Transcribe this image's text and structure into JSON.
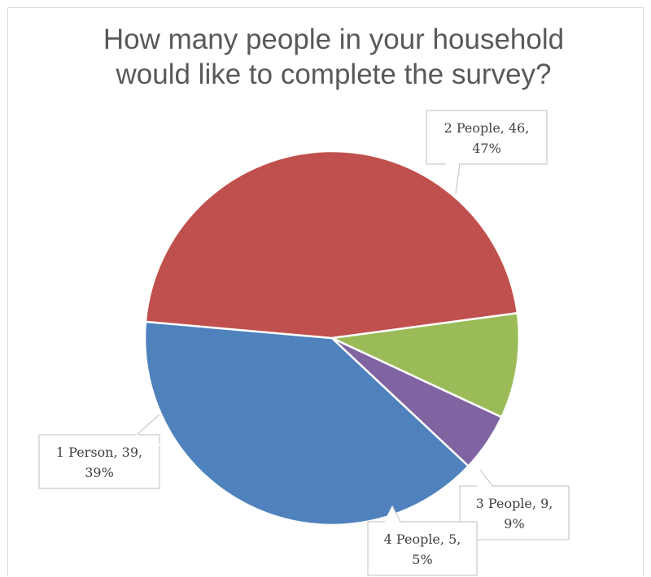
{
  "chart_data": {
    "type": "pie",
    "title_lines": [
      "How many people in your household",
      "would like to complete the survey?"
    ],
    "slices": [
      {
        "category": "1 Person",
        "value": 39,
        "percent": "39%",
        "color": "#4f81bd"
      },
      {
        "category": "2 People",
        "value": 46,
        "percent": "47%",
        "color": "#c0504d"
      },
      {
        "category": "3 People",
        "value": 9,
        "percent": "9%",
        "color": "#9bbb59"
      },
      {
        "category": "4 People",
        "value": 5,
        "percent": "5%",
        "color": "#8064a2"
      }
    ],
    "data_labels": [
      {
        "line1": "1 Person, 39,",
        "line2": "39%"
      },
      {
        "line1": "2 People, 46,",
        "line2": "47%"
      },
      {
        "line1": "3 People, 9,",
        "line2": "9%"
      },
      {
        "line1": "4 People, 5,",
        "line2": "5%"
      }
    ],
    "legend": "none",
    "slice_border_color": "#ffffff",
    "label_border_color": "#bfbfbf"
  }
}
